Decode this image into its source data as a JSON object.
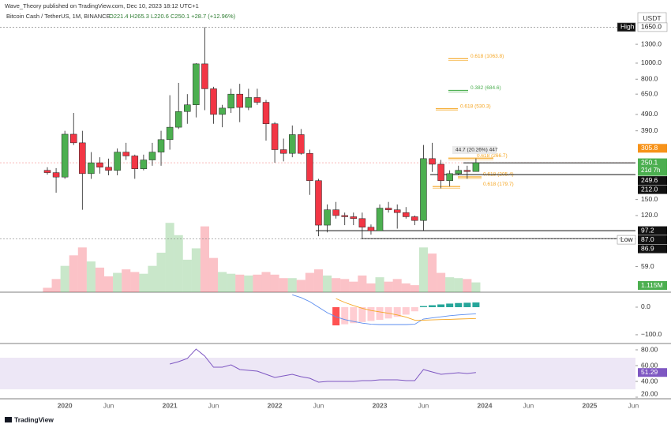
{
  "chart_data": {
    "type": "candlestick",
    "header": {
      "publisher": "Wave_Theory published on TradingView.com, Dec 10, 2023 18:12 UTC+1",
      "symbol": "Bitcoin Cash / TetherUS, 1M, BINANCE",
      "ohlc": "O221.4 H265.3 L220.6 C250.1 +28.7 (+12.96%)"
    },
    "currency": "USDT",
    "footer": "TradingView",
    "categories": [
      null,
      null,
      "2020",
      null,
      null,
      null,
      null,
      "Jun",
      null,
      null,
      null,
      null,
      null,
      null,
      "2021",
      null,
      null,
      null,
      null,
      "Jun",
      null,
      null,
      null,
      null,
      null,
      null,
      "2022",
      null,
      null,
      null,
      null,
      "Jun",
      null,
      null,
      null,
      null,
      null,
      null,
      "2023",
      null,
      null,
      null,
      null,
      "Jun",
      null,
      null,
      null,
      null,
      null,
      null,
      "2024",
      null,
      null,
      null,
      null,
      "Jun",
      null,
      null,
      null,
      null,
      null,
      null,
      "2025",
      null,
      null,
      null,
      null,
      "Jun"
    ],
    "open": [
      225,
      218,
      205,
      372,
      330,
      215,
      250,
      235,
      225,
      290,
      275,
      230,
      260,
      290,
      345,
      410,
      510,
      560,
      990,
      700,
      490,
      535,
      650,
      540,
      620,
      580,
      430,
      300,
      285,
      370,
      285,
      195,
      105,
      130,
      120,
      118,
      115,
      102,
      97,
      133,
      130,
      125,
      118,
      112,
      265,
      245,
      195,
      215,
      225,
      221.4,
      null,
      null,
      null,
      null,
      null,
      null,
      null,
      null,
      null,
      null,
      null,
      null,
      null,
      null,
      null,
      null,
      null,
      null
    ],
    "high": [
      235,
      232,
      390,
      500,
      390,
      290,
      270,
      265,
      305,
      330,
      280,
      280,
      330,
      390,
      640,
      760,
      650,
      1000,
      1650,
      720,
      560,
      700,
      750,
      700,
      700,
      600,
      440,
      350,
      420,
      400,
      300,
      200,
      140,
      145,
      125,
      125,
      125,
      106,
      140,
      145,
      140,
      135,
      120,
      320,
      330,
      260,
      225,
      240,
      240,
      265.3,
      null,
      null,
      null,
      null,
      null,
      null,
      null,
      null,
      null,
      null,
      null,
      null,
      null,
      null,
      null,
      null,
      null,
      null
    ],
    "low": [
      212,
      165,
      200,
      320,
      130,
      200,
      215,
      210,
      210,
      260,
      200,
      225,
      240,
      240,
      300,
      400,
      430,
      470,
      520,
      430,
      410,
      500,
      440,
      520,
      560,
      340,
      250,
      255,
      270,
      280,
      160,
      90,
      95,
      115,
      105,
      105,
      86.9,
      92,
      97,
      125,
      100,
      115,
      105,
      97,
      220,
      175,
      180,
      210,
      200,
      220.6,
      null,
      null,
      null,
      null,
      null,
      null,
      null,
      null,
      null,
      null,
      null,
      null,
      null,
      null,
      null,
      null,
      null,
      null
    ],
    "close": [
      218,
      205,
      372,
      330,
      215,
      250,
      235,
      225,
      290,
      275,
      230,
      260,
      290,
      345,
      410,
      510,
      560,
      990,
      700,
      490,
      535,
      650,
      540,
      620,
      580,
      430,
      300,
      285,
      370,
      285,
      195,
      105,
      130,
      120,
      118,
      115,
      102,
      97,
      133,
      130,
      125,
      118,
      112,
      265,
      245,
      195,
      215,
      225,
      221.4,
      250.1,
      null,
      null,
      null,
      null,
      null,
      null,
      null,
      null,
      null,
      null,
      null,
      null,
      null,
      null,
      null,
      null,
      null,
      null
    ],
    "up_color": "#4caf50",
    "down_color": "#f23645",
    "wick_color": "#222222",
    "log_scale": true,
    "ylim": [
      41.3,
      1770
    ],
    "yticks": [
      {
        "value": 1300,
        "label": "1300.0"
      },
      {
        "value": 1000,
        "label": "1000.0"
      },
      {
        "value": 800,
        "label": "800.0"
      },
      {
        "value": 650,
        "label": "650.0"
      },
      {
        "value": 490,
        "label": "490.0"
      },
      {
        "value": 390,
        "label": "390.0"
      },
      {
        "value": 150,
        "label": "150.0"
      },
      {
        "value": 120,
        "label": "120.0"
      },
      {
        "value": 59,
        "label": "59.0"
      }
    ],
    "price_labels": [
      {
        "value": 1650,
        "label": "1650.0",
        "tag": "High",
        "color": "#ffffff"
      },
      {
        "value": 305.8,
        "label": "305.8",
        "color": "#f7931a"
      },
      {
        "value": 250.1,
        "label": "250.1",
        "countdown": "21d 7h",
        "color": "#4caf50"
      },
      {
        "value": 249.6,
        "label": "249.6",
        "color": "#111111"
      },
      {
        "value": 212,
        "label": "212.0",
        "color": "#111111"
      },
      {
        "value": 97.2,
        "label": "97.2",
        "color": "#111111"
      },
      {
        "value": 87,
        "label": "87.0",
        "tag": "Low",
        "color": "#111111"
      },
      {
        "value": 86.9,
        "label": "86.9",
        "color": "#111111"
      }
    ],
    "fib_levels": [
      {
        "label": "0.618 (1063.8)",
        "value": 1063.8,
        "color": "#f5a623"
      },
      {
        "label": "0.382 (684.6)",
        "value": 684.6,
        "color": "#4caf50"
      },
      {
        "label": "0.618 (530.3)",
        "value": 530.3,
        "color": "#f5a623"
      },
      {
        "label": "0.618 (266.7)",
        "value": 266.7,
        "color": "#f5a623"
      },
      {
        "label": "0.618 (205.4)",
        "value": 205.4,
        "color": "#f5a623"
      },
      {
        "label": "0.618 (179.7)",
        "value": 179.7,
        "color": "#f5a623"
      }
    ],
    "measure_label": "44.7 (20.26%) 447",
    "volume": {
      "values": [
        500000,
        1500000,
        3000000,
        4200000,
        5100000,
        3500000,
        2800000,
        1800000,
        2200000,
        2600000,
        2300000,
        2100000,
        3000000,
        4500000,
        7900000,
        6500000,
        3700000,
        5000000,
        7500000,
        3900000,
        2300000,
        2100000,
        2000000,
        1900000,
        2000000,
        2300000,
        2000000,
        1600000,
        1600000,
        1400000,
        2200000,
        2600000,
        1900000,
        1600000,
        1500000,
        1200000,
        1900000,
        1000000,
        1700000,
        1200000,
        1500000,
        1000000,
        800000,
        5100000,
        4400000,
        2200000,
        1700000,
        1600000,
        1500000,
        1115000,
        null,
        null,
        null,
        null,
        null,
        null,
        null,
        null,
        null,
        null,
        null,
        null,
        null,
        null,
        null,
        null,
        null,
        null
      ],
      "vlim": [
        0,
        9000000
      ],
      "last_label": "1.115M",
      "label_color": "#4caf50"
    },
    "macd": {
      "histogram": [
        null,
        null,
        null,
        null,
        null,
        null,
        null,
        null,
        null,
        null,
        null,
        null,
        null,
        null,
        null,
        null,
        null,
        null,
        null,
        null,
        null,
        null,
        null,
        null,
        null,
        null,
        null,
        null,
        null,
        null,
        null,
        null,
        null,
        -66,
        -62,
        -58,
        -54,
        -50,
        -46,
        -41,
        -35,
        -27,
        -15,
        4,
        7,
        10,
        13,
        15,
        16,
        17,
        null,
        null,
        null,
        null,
        null,
        null,
        null,
        null,
        null,
        null,
        null,
        null,
        null,
        null,
        null,
        null,
        null,
        null
      ],
      "macd": [
        null,
        null,
        null,
        null,
        null,
        null,
        null,
        null,
        null,
        null,
        null,
        null,
        null,
        null,
        null,
        null,
        null,
        null,
        null,
        null,
        null,
        null,
        null,
        null,
        null,
        null,
        null,
        null,
        45,
        35,
        20,
        0,
        -20,
        -35,
        -45,
        -52,
        -58,
        -62,
        -63,
        -63,
        -63,
        -63,
        -62,
        -43,
        -39,
        -35,
        -31,
        -28,
        -26,
        -24,
        null,
        null,
        null,
        null,
        null,
        null,
        null,
        null,
        null,
        null,
        null,
        null,
        null,
        null,
        null,
        null,
        null,
        null
      ],
      "signal": [
        null,
        null,
        null,
        null,
        null,
        null,
        null,
        null,
        null,
        null,
        null,
        null,
        null,
        null,
        null,
        null,
        null,
        null,
        null,
        null,
        null,
        null,
        null,
        null,
        null,
        null,
        null,
        null,
        null,
        null,
        null,
        null,
        null,
        31,
        17,
        6,
        -4,
        -12,
        -17,
        -22,
        -28,
        -36,
        -47,
        -47,
        -46,
        -45,
        -44,
        -43,
        -42,
        -41,
        null,
        null,
        null,
        null,
        null,
        null,
        null,
        null,
        null,
        null,
        null,
        null,
        null,
        null,
        null,
        null,
        null,
        null
      ],
      "macd_color": "#5b8def",
      "signal_color": "#f5a623",
      "hist_colors": {
        "neg_falling": "#ff5252",
        "neg_rising": "#ffcdd2",
        "pos_rising": "#26a69a",
        "pos_falling": "#b2dfdb"
      },
      "ylim": [
        -126,
        48.6
      ],
      "yticks": [
        {
          "value": 0,
          "label": "0.0"
        },
        {
          "value": -100,
          "label": "−100.0"
        }
      ]
    },
    "rsi": {
      "values": [
        null,
        null,
        null,
        null,
        null,
        null,
        null,
        null,
        null,
        null,
        null,
        null,
        null,
        null,
        62,
        65,
        69,
        81,
        72,
        58,
        58,
        61,
        55,
        54,
        53,
        49,
        45,
        47,
        49,
        46,
        44,
        39,
        40,
        40,
        40,
        40,
        41,
        41,
        42,
        42,
        42,
        41,
        41,
        55,
        52,
        49,
        50,
        51,
        50,
        51.29,
        null,
        null,
        null,
        null,
        null,
        null,
        null,
        null,
        null,
        null,
        null,
        null,
        null,
        null,
        null,
        null,
        null,
        null
      ],
      "last_label": "51.29",
      "color": "#7e57c2",
      "band": [
        30,
        70
      ],
      "band_color": "#ede7f6",
      "ylim": [
        20,
        86
      ],
      "yticks": [
        {
          "value": 80,
          "label": "80.00"
        },
        {
          "value": 60,
          "label": "60.00"
        },
        {
          "value": 40,
          "label": "40.00"
        },
        {
          "value": 20,
          "label": "20.00"
        }
      ]
    }
  }
}
